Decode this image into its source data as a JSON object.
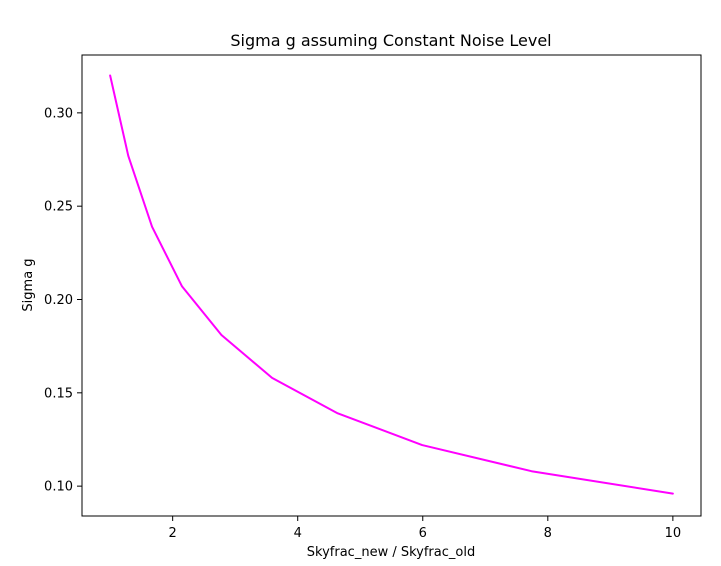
{
  "chart_data": {
    "type": "line",
    "title": "Sigma g assuming Constant Noise Level",
    "xlabel": "Skyfrac_new / Skyfrac_old",
    "ylabel": "Sigma g",
    "xlim": [
      0.55,
      10.45
    ],
    "ylim": [
      0.084,
      0.331
    ],
    "xticks": [
      2,
      4,
      6,
      8,
      10
    ],
    "xtick_labels": [
      "2",
      "4",
      "6",
      "8",
      "10"
    ],
    "yticks": [
      0.1,
      0.15,
      0.2,
      0.25,
      0.3
    ],
    "ytick_labels": [
      "0.10",
      "0.15",
      "0.20",
      "0.25",
      "0.30"
    ],
    "grid": false,
    "series": [
      {
        "color": "#ff00ff",
        "x": [
          1.0,
          1.29,
          1.67,
          2.15,
          2.78,
          3.59,
          4.64,
          5.99,
          7.74,
          10.0
        ],
        "y": [
          0.32,
          0.277,
          0.239,
          0.207,
          0.181,
          0.158,
          0.139,
          0.122,
          0.108,
          0.096
        ]
      }
    ]
  }
}
